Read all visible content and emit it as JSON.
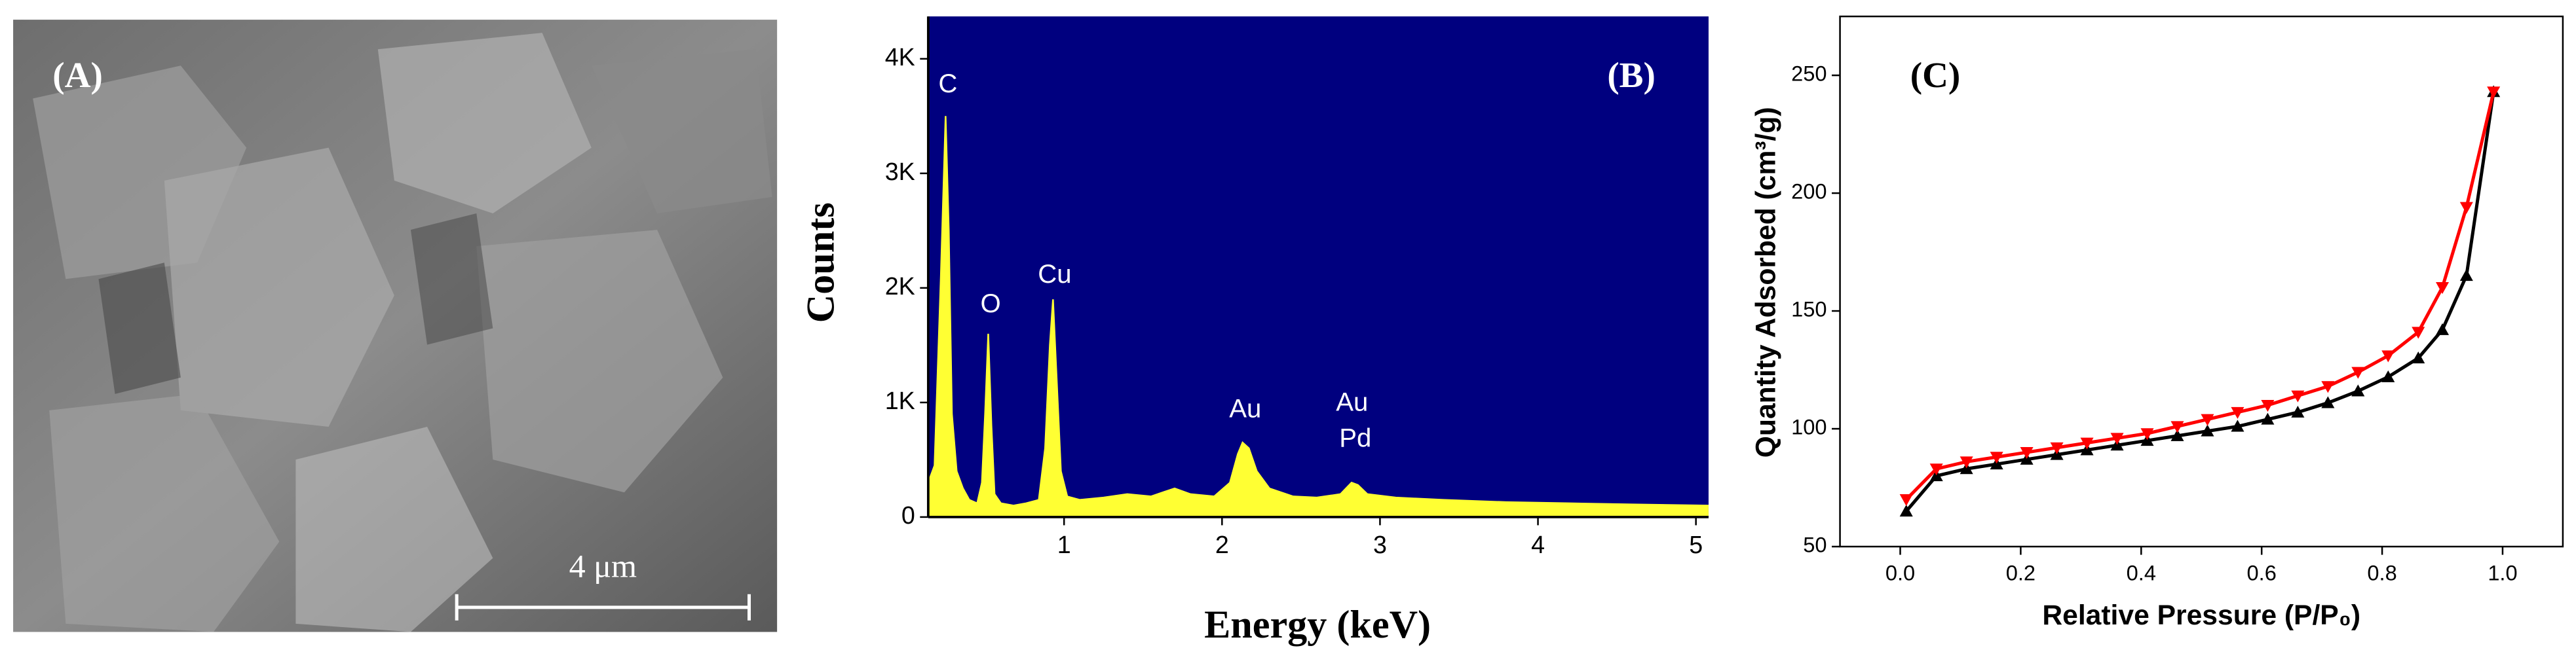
{
  "chart_data": [
    {
      "type": "image",
      "label": "(A)",
      "scale_bar": "4 μm"
    },
    {
      "type": "area",
      "label": "(B)",
      "x_label": "Energy (keV)",
      "y_label": "Counts",
      "color": "#ffff33",
      "background": "#00007f",
      "x": [
        0.14,
        0.18,
        0.22,
        0.25,
        0.27,
        0.29,
        0.32,
        0.36,
        0.4,
        0.45,
        0.48,
        0.5,
        0.52,
        0.54,
        0.56,
        0.6,
        0.68,
        0.76,
        0.84,
        0.88,
        0.91,
        0.93,
        0.95,
        0.98,
        1.02,
        1.1,
        1.25,
        1.4,
        1.55,
        1.7,
        1.8,
        1.95,
        2.05,
        2.1,
        2.13,
        2.17,
        2.22,
        2.3,
        2.45,
        2.6,
        2.75,
        2.82,
        2.86,
        2.92,
        3.1,
        3.4,
        3.8,
        4.2,
        4.6,
        5.08
      ],
      "values": [
        300,
        450,
        2100,
        3500,
        2500,
        900,
        400,
        250,
        150,
        120,
        300,
        900,
        1600,
        800,
        200,
        120,
        100,
        120,
        150,
        600,
        1500,
        1900,
        1300,
        400,
        180,
        150,
        170,
        200,
        180,
        250,
        200,
        180,
        300,
        550,
        650,
        600,
        400,
        250,
        180,
        170,
        200,
        300,
        280,
        200,
        170,
        150,
        130,
        120,
        110,
        100
      ],
      "xlim": [
        0.14,
        5.08
      ],
      "ylim": [
        0,
        4370
      ],
      "xticks": [
        1,
        2,
        3,
        4,
        5
      ],
      "yticks": [
        0,
        {
          "value": 1000,
          "label": "1K"
        },
        {
          "value": 2000,
          "label": "2K"
        },
        {
          "value": 3000,
          "label": "3K"
        },
        {
          "value": 4000,
          "label": "4K"
        }
      ],
      "annotations": [
        "C",
        "O",
        "Cu",
        "Au",
        "Au",
        "Pd"
      ]
    },
    {
      "type": "line",
      "label": "(C)",
      "x_label": "Relative Pressure (P/P₀)",
      "y_label": "Quantity Adsorbed (cm³/g)",
      "x": [
        0.01,
        0.06,
        0.11,
        0.16,
        0.21,
        0.26,
        0.31,
        0.36,
        0.41,
        0.46,
        0.51,
        0.56,
        0.61,
        0.66,
        0.71,
        0.76,
        0.81,
        0.86,
        0.9,
        0.94,
        0.985
      ],
      "series": [
        {
          "color": "#000000",
          "marker": "triangle-up",
          "values": [
            65,
            80,
            83,
            85,
            87,
            89,
            91,
            93,
            95,
            97,
            99,
            101,
            104,
            107,
            111,
            116,
            122,
            130,
            142,
            165,
            243
          ]
        },
        {
          "color": "#ff0000",
          "marker": "triangle-down",
          "values": [
            70,
            83,
            86,
            88,
            90,
            92,
            94,
            96,
            98,
            101,
            104,
            107,
            110,
            114,
            118,
            124,
            131,
            141,
            160,
            194,
            243
          ]
        }
      ],
      "xlim": [
        -0.1,
        1.1
      ],
      "ylim": [
        50,
        275
      ],
      "xticks": [
        {
          "value": 0,
          "label": "0.0"
        },
        0.2,
        0.4,
        0.6,
        0.8,
        {
          "value": 1,
          "label": "1.0"
        }
      ],
      "yticks": [
        50,
        100,
        150,
        200,
        250
      ]
    }
  ]
}
